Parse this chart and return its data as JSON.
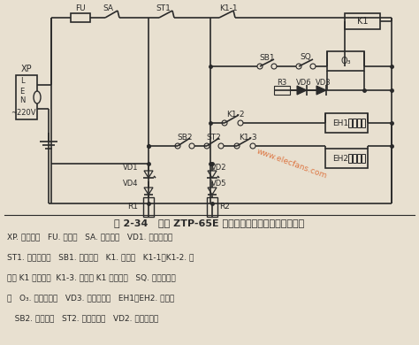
{
  "title": "图 2-34   索奇 ZTP-65E 豪华型多功能电子消毒柜电路图",
  "desc1": "XP. 电源插头   FU. 熔断器   SA. 电源开关   VD1. 电源指示灯",
  "desc2": "ST1. 消毒温控器   SB1. 臭氧开关   K1. 继电器   K1-1、K1-2. 继",
  "desc3": "电器 K1 常开触点  K1-3. 继电器 K1 常闭触点   SQ. 臭氧门控开",
  "desc4": "关   O₃. 臭氧发生器   VD3. 臭氧指示灯   EH1、EH2. 发热器",
  "desc5": "   SB2. 保温开关   ST2. 保温温控器   VD2. 保温指示灯",
  "bg_color": "#e8e0d0",
  "line_color": "#2a2a2a",
  "watermark": "www.elecfans.com"
}
